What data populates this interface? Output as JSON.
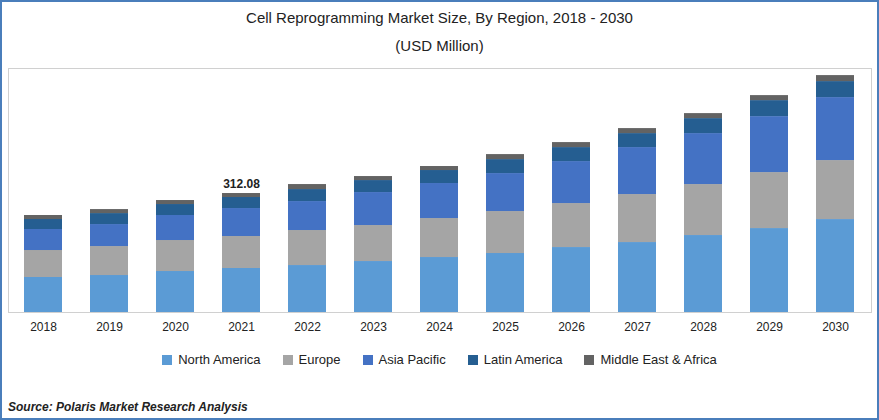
{
  "chart_data": {
    "type": "bar",
    "title": "Cell Reprogramming Market Size, By Region, 2018 - 2030",
    "subtitle": "(USD Million)",
    "source": "Source: Polaris Market Research Analysis",
    "stacked": true,
    "grid": false,
    "data_labels": false,
    "tick_labels": "x",
    "legend": "bottom",
    "categories": [
      "2018",
      "2019",
      "2020",
      "2021",
      "2022",
      "2023",
      "2024",
      "2025",
      "2026",
      "2027",
      "2028",
      "2029",
      "2030"
    ],
    "ylim": [
      0,
      640
    ],
    "yticks": [],
    "series": [
      {
        "name": "North America",
        "color": "#5b9bd5",
        "values": [
          91.8,
          97.0,
          107.5,
          115.4,
          123.2,
          133.7,
          144.2,
          154.7,
          170.4,
          183.5,
          201.9,
          220.2,
          243.8
        ]
      },
      {
        "name": "Europe",
        "color": "#a5a5a5",
        "values": [
          70.8,
          76.0,
          81.3,
          83.9,
          91.8,
          94.4,
          102.3,
          110.1,
          115.4,
          125.9,
          133.7,
          146.8,
          154.7
        ]
      },
      {
        "name": "Asia Pacific",
        "color": "#4472c4",
        "values": [
          55.1,
          57.7,
          65.6,
          73.4,
          76.0,
          86.5,
          91.8,
          99.6,
          110.1,
          123.2,
          133.7,
          146.8,
          165.2
        ]
      },
      {
        "name": "Latin America",
        "color": "#255e91",
        "values": [
          26.2,
          28.8,
          28.8,
          28.9,
          31.5,
          31.5,
          34.1,
          36.7,
          36.7,
          36.7,
          39.3,
          42.0,
          42.0
        ]
      },
      {
        "name": "Middle East & Africa",
        "color": "#636363",
        "values": [
          10.5,
          10.5,
          10.5,
          10.48,
          13.1,
          10.5,
          10.5,
          13.1,
          13.1,
          13.1,
          13.1,
          13.1,
          15.7
        ]
      }
    ],
    "annotations": [
      {
        "x": "2021",
        "y": 312.08,
        "text": "312.08"
      }
    ]
  }
}
